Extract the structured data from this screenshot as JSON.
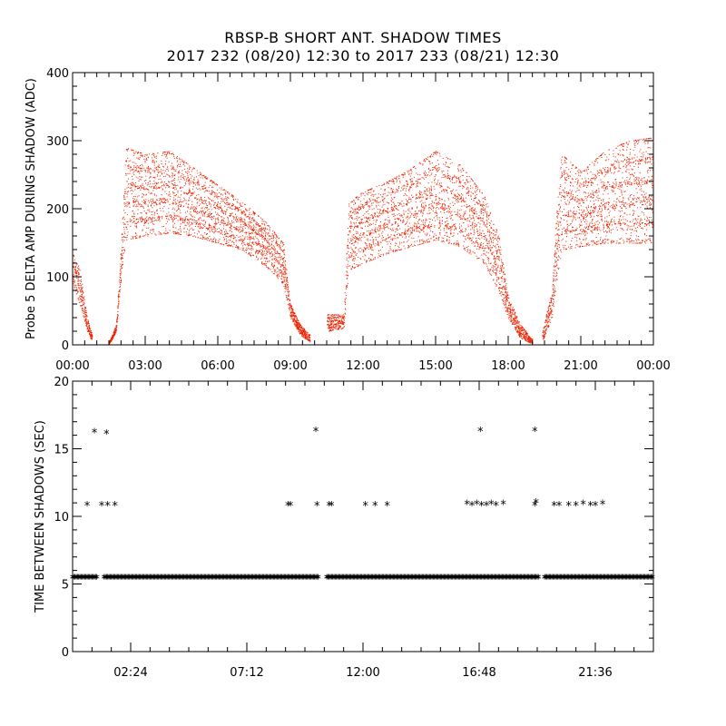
{
  "title_line1": "RBSP-B SHORT ANT. SHADOW TIMES",
  "title_line2": "2017 232 (08/20) 12:30 to 2017 233 (08/21) 12:30",
  "chart_data": [
    {
      "type": "scatter",
      "ylabel": "Probe 5 DELTA AMP DURING SHADOW (ADC)",
      "xlabel": "",
      "x_unit": "hours",
      "xlim": [
        0,
        24
      ],
      "ylim": [
        0,
        400
      ],
      "y_ticks": [
        0,
        100,
        200,
        300,
        400
      ],
      "x_ticks": [
        {
          "hour": 0,
          "label": "00:00"
        },
        {
          "hour": 3,
          "label": "03:00"
        },
        {
          "hour": 6,
          "label": "06:00"
        },
        {
          "hour": 9,
          "label": "09:00"
        },
        {
          "hour": 12,
          "label": "12:00"
        },
        {
          "hour": 15,
          "label": "15:00"
        },
        {
          "hour": 18,
          "label": "18:00"
        },
        {
          "hour": 21,
          "label": "21:00"
        },
        {
          "hour": 24,
          "label": "00:00"
        }
      ],
      "color": "#ee2200",
      "grid": false,
      "band_envelopes": [
        {
          "x": [
            0,
            0.3,
            0.6,
            0.8
          ],
          "lower": [
            90,
            60,
            20,
            5
          ],
          "upper": [
            135,
            110,
            40,
            15
          ]
        },
        {
          "x": [
            1.5,
            1.8,
            2.0,
            2.2,
            3.0,
            4.0,
            5.0,
            6.0,
            7.0,
            8.0,
            8.7,
            9.0,
            9.4,
            9.8
          ],
          "lower": [
            0,
            20,
            100,
            155,
            160,
            165,
            160,
            150,
            140,
            115,
            90,
            40,
            15,
            5
          ],
          "upper": [
            5,
            30,
            150,
            290,
            280,
            285,
            260,
            235,
            210,
            180,
            150,
            60,
            30,
            15
          ]
        },
        {
          "x": [
            10.5,
            11.2,
            11.4,
            12.0,
            13.0,
            14.0,
            15.0,
            16.0,
            17.0,
            17.6,
            18.0,
            18.5,
            19.0
          ],
          "lower": [
            20,
            25,
            110,
            120,
            135,
            145,
            155,
            145,
            120,
            80,
            40,
            10,
            2
          ],
          "upper": [
            45,
            45,
            210,
            225,
            240,
            260,
            285,
            265,
            220,
            160,
            70,
            30,
            8
          ]
        },
        {
          "x": [
            19.4,
            19.8,
            20.0,
            20.2,
            21.0,
            22.0,
            23.0,
            24.0
          ],
          "lower": [
            5,
            40,
            95,
            140,
            145,
            150,
            150,
            150
          ],
          "upper": [
            20,
            80,
            200,
            280,
            255,
            285,
            300,
            305
          ]
        }
      ]
    },
    {
      "type": "scatter",
      "ylabel": "TIME BETWEEN SHADOWS (SEC)",
      "xlabel": "",
      "x_unit": "hours",
      "xlim": [
        0,
        24
      ],
      "ylim": [
        0,
        20
      ],
      "y_ticks": [
        0,
        5,
        10,
        15,
        20
      ],
      "x_ticks": [
        {
          "hour": 2.4,
          "label": "02:24"
        },
        {
          "hour": 7.2,
          "label": "07:12"
        },
        {
          "hour": 12.0,
          "label": "12:00"
        },
        {
          "hour": 16.8,
          "label": "16:48"
        },
        {
          "hour": 21.6,
          "label": "21:36"
        }
      ],
      "color": "#000000",
      "marker": "*",
      "baseline_value": 5.4,
      "baseline_segments": [
        [
          0,
          1.05
        ],
        [
          1.3,
          10.2
        ],
        [
          10.5,
          19.3
        ],
        [
          19.5,
          24
        ]
      ],
      "points": [
        {
          "x": 0.6,
          "y": 10.8
        },
        {
          "x": 1.2,
          "y": 10.8
        },
        {
          "x": 1.45,
          "y": 10.8
        },
        {
          "x": 1.75,
          "y": 10.8
        },
        {
          "x": 0.9,
          "y": 16.2
        },
        {
          "x": 1.4,
          "y": 16.1
        },
        {
          "x": 8.9,
          "y": 10.8
        },
        {
          "x": 9.0,
          "y": 10.8
        },
        {
          "x": 10.05,
          "y": 16.3
        },
        {
          "x": 10.1,
          "y": 10.8
        },
        {
          "x": 10.6,
          "y": 10.8
        },
        {
          "x": 10.7,
          "y": 10.8
        },
        {
          "x": 12.1,
          "y": 10.8
        },
        {
          "x": 12.5,
          "y": 10.8
        },
        {
          "x": 13.0,
          "y": 10.8
        },
        {
          "x": 16.3,
          "y": 10.9
        },
        {
          "x": 16.5,
          "y": 10.8
        },
        {
          "x": 16.7,
          "y": 10.9
        },
        {
          "x": 16.9,
          "y": 10.8
        },
        {
          "x": 17.1,
          "y": 10.8
        },
        {
          "x": 17.3,
          "y": 10.9
        },
        {
          "x": 17.5,
          "y": 10.8
        },
        {
          "x": 17.8,
          "y": 10.9
        },
        {
          "x": 16.85,
          "y": 16.3
        },
        {
          "x": 19.1,
          "y": 10.8
        },
        {
          "x": 19.15,
          "y": 11.0
        },
        {
          "x": 19.9,
          "y": 10.8
        },
        {
          "x": 20.1,
          "y": 10.8
        },
        {
          "x": 20.5,
          "y": 10.8
        },
        {
          "x": 20.8,
          "y": 10.8
        },
        {
          "x": 21.1,
          "y": 10.9
        },
        {
          "x": 21.4,
          "y": 10.8
        },
        {
          "x": 21.6,
          "y": 10.8
        },
        {
          "x": 21.9,
          "y": 10.9
        },
        {
          "x": 19.1,
          "y": 16.3
        }
      ]
    }
  ]
}
